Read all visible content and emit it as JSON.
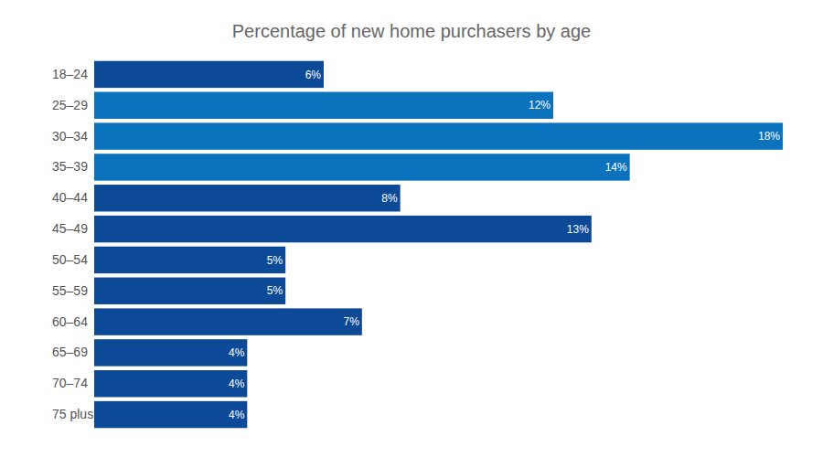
{
  "chart_data": {
    "type": "bar",
    "orientation": "horizontal",
    "title": "Percentage of new home purchasers by age",
    "categories": [
      "18–24",
      "25–29",
      "30–34",
      "35–39",
      "40–44",
      "45–49",
      "50–54",
      "55–59",
      "60–64",
      "65–69",
      "70–74",
      "75 plus"
    ],
    "values": [
      6,
      12,
      18,
      14,
      8,
      13,
      5,
      5,
      7,
      4,
      4,
      4
    ],
    "value_labels": [
      "6%",
      "12%",
      "18%",
      "14%",
      "8%",
      "13%",
      "5%",
      "5%",
      "7%",
      "4%",
      "4%",
      "4%"
    ],
    "colors": [
      "#0c4a97",
      "#0b72be",
      "#0b72be",
      "#0b72be",
      "#0c4a97",
      "#0c4a97",
      "#0c4a97",
      "#0c4a97",
      "#0c4a97",
      "#0c4a97",
      "#0c4a97",
      "#0c4a97"
    ],
    "xlim": [
      0,
      18
    ],
    "data_labels": true,
    "tick_labels": "y",
    "grid": false
  }
}
